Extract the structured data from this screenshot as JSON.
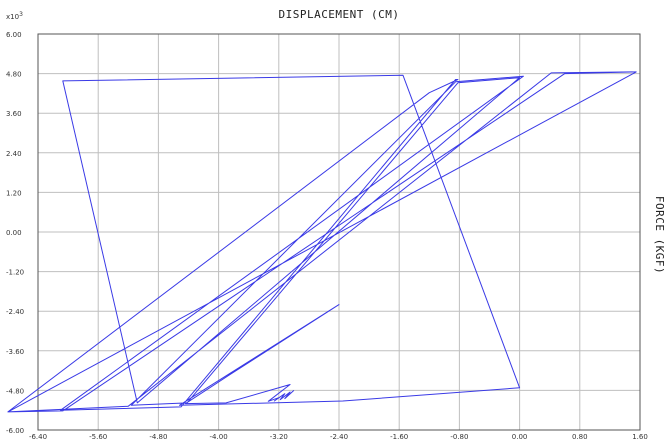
{
  "chart_data": {
    "type": "line",
    "title": "DISPLACEMENT (CM)",
    "ylabel": "FORCE (KGF)",
    "y_multiplier": "x10",
    "y_multiplier_exp": "3",
    "xlim": [
      -6.4,
      1.6
    ],
    "ylim": [
      -6.0,
      6.0
    ],
    "grid": true,
    "x_ticks": [
      "-6.40",
      "-5.60",
      "-4.80",
      "-4.00",
      "-3.20",
      "-2.40",
      "-1.60",
      "-0.80",
      "0.00",
      "0.80",
      "1.60"
    ],
    "y_ticks": [
      "6.00",
      "4.80",
      "3.60",
      "2.40",
      "1.20",
      "0.00",
      "-1.20",
      "-2.40",
      "-3.60",
      "-4.80",
      "-6.00"
    ],
    "colors": {
      "line": "#3a3ae6",
      "grid": "#bfbfbf",
      "axis": "#555555"
    },
    "series": [
      {
        "x": [
          -3.0,
          -3.12,
          -3.05,
          -3.18,
          -3.12,
          -3.26,
          -3.2,
          -3.34,
          -3.05,
          -3.9,
          -4.44,
          -3.85,
          -2.4,
          -4.45,
          -4.52,
          -2.35,
          0.0,
          -1.55,
          -6.07,
          -5.08,
          0.0,
          -0.82,
          -4.42,
          -5.16,
          -0.85,
          0.05,
          -6.1,
          -4.5,
          -0.85,
          -0.82,
          -1.2,
          -6.8,
          -6.07,
          0.6,
          1.55,
          -6.8,
          -5.2,
          0.42,
          1.5
        ],
        "y": [
          -4.8,
          -5.05,
          -4.85,
          -5.08,
          -4.9,
          -5.12,
          -5.02,
          -5.13,
          -4.62,
          -5.18,
          -5.2,
          -4.32,
          -2.2,
          -5.15,
          -5.25,
          -5.12,
          -4.72,
          4.75,
          4.58,
          -5.18,
          4.68,
          4.52,
          -5.18,
          -5.25,
          4.55,
          4.72,
          -5.4,
          -5.3,
          4.62,
          4.62,
          4.22,
          -5.45,
          -5.42,
          4.8,
          4.85,
          -5.45,
          -5.28,
          4.82,
          4.85
        ]
      }
    ]
  }
}
